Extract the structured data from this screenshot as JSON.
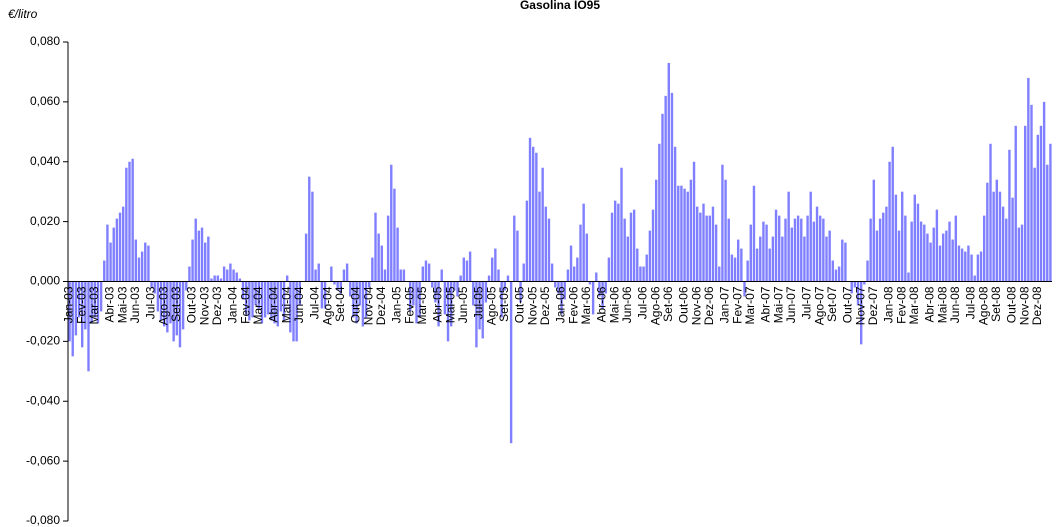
{
  "chart_data": {
    "type": "bar",
    "title": "Gasolina IO95",
    "y_label": "€/litro",
    "color": "#7f7fff",
    "ylim": [
      -0.08,
      0.08
    ],
    "yticks": [
      {
        "value": -0.08,
        "label": "-0,080"
      },
      {
        "value": -0.06,
        "label": "-0,060"
      },
      {
        "value": -0.04,
        "label": "-0,040"
      },
      {
        "value": -0.02,
        "label": "-0,020"
      },
      {
        "value": 0,
        "label": "0,000"
      },
      {
        "value": 0.02,
        "label": "0,020"
      },
      {
        "value": 0.04,
        "label": "0,040"
      },
      {
        "value": 0.06,
        "label": "0,060"
      },
      {
        "value": 0.08,
        "label": "0,080"
      }
    ],
    "categories": [
      "Jan-03",
      null,
      null,
      null,
      "Fev-03",
      null,
      null,
      null,
      "Mar-03",
      null,
      null,
      null,
      null,
      "Abr-03",
      null,
      null,
      null,
      "Mai-03",
      null,
      null,
      null,
      "Jun-03",
      null,
      null,
      null,
      null,
      "Jul-03",
      null,
      null,
      null,
      "Ago-03",
      null,
      null,
      null,
      "Set-03",
      null,
      null,
      null,
      null,
      "Out-03",
      null,
      null,
      null,
      "Nov-03",
      null,
      null,
      null,
      "Dez-03",
      null,
      null,
      null,
      null,
      "Jan-04",
      null,
      null,
      null,
      "Fev-04",
      null,
      null,
      null,
      "Mar-04",
      null,
      null,
      null,
      null,
      "Abr-04",
      null,
      null,
      null,
      "Mai-04",
      null,
      null,
      null,
      "Jun-04",
      null,
      null,
      null,
      null,
      "Jul-04",
      null,
      null,
      null,
      "Ago-04",
      null,
      null,
      null,
      "Set-04",
      null,
      null,
      null,
      null,
      "Out-04",
      null,
      null,
      null,
      "Nov-04",
      null,
      null,
      null,
      "Dez-04",
      null,
      null,
      null,
      null,
      "Jan-05",
      null,
      null,
      null,
      "Fev-05",
      null,
      null,
      null,
      "Mar-05",
      null,
      null,
      null,
      null,
      "Abr-05",
      null,
      null,
      null,
      "Mai-05",
      null,
      null,
      null,
      "Jun-05",
      null,
      null,
      null,
      null,
      "Jul-05",
      null,
      null,
      null,
      "Ago-05",
      null,
      null,
      null,
      "Set-05",
      null,
      null,
      null,
      null,
      "Out-05",
      null,
      null,
      null,
      "Nov-05",
      null,
      null,
      null,
      "Dez-05",
      null,
      null,
      null,
      null,
      "Jan-06",
      null,
      null,
      null,
      "Fev-06",
      null,
      null,
      null,
      "Mar-06",
      null,
      null,
      null,
      null,
      "Abr-06",
      null,
      null,
      null,
      "Mai-06",
      null,
      null,
      null,
      "Jun-06",
      null,
      null,
      null,
      null,
      "Jul-06",
      null,
      null,
      null,
      "Ago-06",
      null,
      null,
      null,
      "Set-06",
      null,
      null,
      null,
      null,
      "Out-06",
      null,
      null,
      null,
      "Nov-06",
      null,
      null,
      null,
      "Dez-06",
      null,
      null,
      null,
      null,
      "Jan-07",
      null,
      null,
      null,
      "Fev-07",
      null,
      null,
      null,
      "Mar-07",
      null,
      null,
      null,
      null,
      "Abr-07",
      null,
      null,
      null,
      "Mai-07",
      null,
      null,
      null,
      "Jun-07",
      null,
      null,
      null,
      null,
      "Jul-07",
      null,
      null,
      null,
      "Ago-07",
      null,
      null,
      null,
      "Set-07",
      null,
      null,
      null,
      null,
      "Out-07",
      null,
      null,
      null,
      "Nov-07",
      null,
      null,
      null,
      "Dez-07",
      null,
      null,
      null,
      null,
      "Jan-08",
      null,
      null,
      null,
      "Fev-08",
      null,
      null,
      null,
      "Mar-08",
      null,
      null,
      null,
      null,
      "Abr-08",
      null,
      null,
      null,
      "Mai-08",
      null,
      null,
      null,
      "Jun-08",
      null,
      null,
      null,
      null,
      "Jul-08",
      null,
      null,
      null,
      "Ago-08",
      null,
      null,
      null,
      "Set-08",
      null,
      null,
      null,
      null,
      "Out-08",
      null,
      null,
      null,
      "Nov-08",
      null,
      null,
      null,
      "Dez-08",
      null,
      null,
      null,
      null
    ],
    "values": [
      -0.02,
      -0.025,
      -0.018,
      -0.012,
      -0.022,
      -0.016,
      -0.03,
      -0.014,
      -0.012,
      -0.014,
      -0.01,
      0.007,
      0.019,
      0.013,
      0.018,
      0.021,
      0.023,
      0.025,
      0.038,
      0.04,
      0.041,
      0.014,
      0.008,
      0.01,
      0.013,
      0.012,
      -0.002,
      -0.004,
      -0.01,
      -0.013,
      -0.015,
      -0.017,
      -0.014,
      -0.02,
      -0.018,
      -0.022,
      -0.016,
      -0.003,
      0.005,
      0.014,
      0.021,
      0.017,
      0.018,
      0.013,
      0.015,
      0.001,
      0.002,
      0.002,
      0.001,
      0.005,
      0.004,
      0.006,
      0.004,
      0.003,
      0.001,
      -0.006,
      -0.011,
      -0.013,
      -0.012,
      -0.008,
      -0.009,
      -0.014,
      -0.012,
      -0.011,
      -0.013,
      -0.014,
      -0.015,
      -0.01,
      -0.013,
      0.002,
      -0.017,
      -0.02,
      -0.02,
      -0.008,
      0.0,
      0.016,
      0.035,
      0.03,
      0.004,
      0.006,
      -0.009,
      -0.009,
      0.0,
      0.005,
      -0.001,
      -0.003,
      -0.004,
      0.004,
      0.006,
      -0.005,
      -0.012,
      -0.014,
      -0.008,
      -0.015,
      -0.012,
      -0.002,
      0.008,
      0.023,
      0.016,
      0.012,
      0.004,
      0.022,
      0.039,
      0.031,
      0.018,
      0.004,
      0.004,
      0.0,
      -0.01,
      -0.008,
      -0.014,
      -0.012,
      0.005,
      0.007,
      0.006,
      -0.002,
      -0.007,
      -0.015,
      0.004,
      -0.011,
      -0.02,
      -0.015,
      -0.003,
      -0.005,
      0.002,
      0.008,
      0.007,
      0.01,
      -0.008,
      -0.022,
      -0.016,
      -0.019,
      -0.007,
      0.002,
      0.008,
      0.011,
      0.004,
      -0.012,
      -0.003,
      0.002,
      -0.054,
      0.022,
      0.017,
      -0.007,
      0.006,
      0.027,
      0.048,
      0.045,
      0.043,
      0.03,
      0.038,
      0.025,
      0.021,
      0.006,
      -0.002,
      -0.004,
      -0.011,
      -0.006,
      0.004,
      0.012,
      0.005,
      0.008,
      0.019,
      0.026,
      0.016,
      -0.001,
      -0.011,
      0.003,
      -0.005,
      -0.009,
      -0.004,
      0.008,
      0.023,
      0.027,
      0.026,
      0.038,
      0.021,
      0.015,
      0.023,
      0.024,
      0.011,
      0.005,
      0.005,
      0.009,
      0.017,
      0.024,
      0.034,
      0.046,
      0.056,
      0.062,
      0.073,
      0.063,
      0.045,
      0.032,
      0.032,
      0.031,
      0.03,
      0.034,
      0.04,
      0.025,
      0.023,
      0.026,
      0.022,
      0.022,
      0.025,
      0.019,
      0.005,
      0.039,
      0.034,
      0.021,
      0.009,
      0.008,
      0.014,
      0.011,
      -0.005,
      0.007,
      0.019,
      0.032,
      0.011,
      0.015,
      0.02,
      0.019,
      0.011,
      0.015,
      0.024,
      0.022,
      0.015,
      0.021,
      0.03,
      0.018,
      0.021,
      0.022,
      0.021,
      0.015,
      0.022,
      0.03,
      0.02,
      0.025,
      0.022,
      0.021,
      0.015,
      0.017,
      0.007,
      0.004,
      0.005,
      0.014,
      0.013,
      0.0,
      -0.004,
      -0.002,
      -0.008,
      -0.021,
      -0.001,
      0.007,
      0.021,
      0.034,
      0.017,
      0.021,
      0.023,
      0.025,
      0.04,
      0.045,
      0.029,
      0.017,
      0.03,
      0.022,
      0.003,
      0.02,
      0.029,
      0.026,
      0.02,
      0.019,
      0.016,
      0.013,
      0.018,
      0.024,
      0.012,
      0.016,
      0.017,
      0.02,
      0.014,
      0.022,
      0.012,
      0.011,
      0.01,
      0.012,
      0.009,
      0.002,
      0.009,
      0.01,
      0.022,
      0.033,
      0.046,
      0.03,
      0.034,
      0.03,
      0.025,
      0.021,
      0.044,
      0.028,
      0.052,
      0.018,
      0.019,
      0.052,
      0.068,
      0.059,
      0.038,
      0.049,
      0.052,
      0.06,
      0.039,
      0.046
    ]
  }
}
